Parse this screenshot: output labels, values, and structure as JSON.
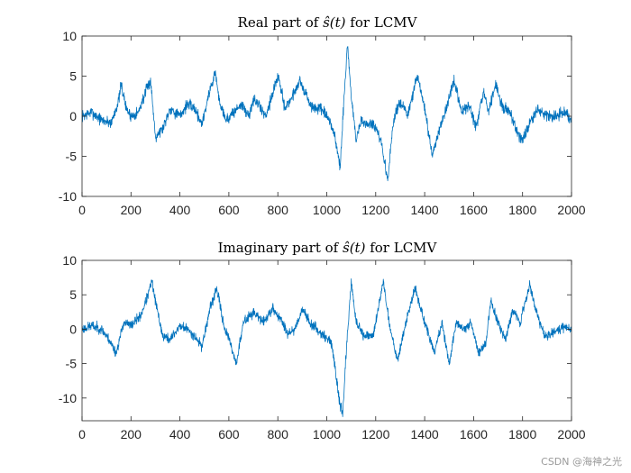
{
  "watermark": "CSDN @海神之光",
  "colors": {
    "series": "#0072BD",
    "axis": "#262626",
    "background": "#ffffff"
  },
  "chart_data": [
    {
      "type": "line",
      "title_prefix": "Real part of ",
      "title_math": "ŝ(t)",
      "title_suffix": " for LCMV",
      "xlim": [
        0,
        2000
      ],
      "ylim": [
        -10,
        10
      ],
      "xticks": [
        0,
        200,
        400,
        600,
        800,
        1000,
        1200,
        1400,
        1600,
        1800,
        2000
      ],
      "yticks": [
        -10,
        -5,
        0,
        5,
        10
      ],
      "xtick_labels": [
        "0",
        "200",
        "400",
        "600",
        "800",
        "1000",
        "1200",
        "1400",
        "1600",
        "1800",
        "2000"
      ],
      "ytick_labels": [
        "-10",
        "-5",
        "0",
        "5",
        "10"
      ],
      "noise": 0.7,
      "seed": 7,
      "x": [
        0,
        40,
        80,
        120,
        150,
        160,
        180,
        200,
        230,
        260,
        280,
        300,
        330,
        360,
        400,
        430,
        460,
        490,
        520,
        545,
        560,
        590,
        620,
        650,
        680,
        700,
        720,
        750,
        780,
        800,
        830,
        860,
        890,
        910,
        940,
        970,
        1000,
        1030,
        1055,
        1070,
        1085,
        1100,
        1120,
        1140,
        1160,
        1190,
        1220,
        1250,
        1270,
        1300,
        1330,
        1370,
        1400,
        1430,
        1460,
        1490,
        1520,
        1550,
        1580,
        1610,
        1640,
        1660,
        1690,
        1720,
        1750,
        1780,
        1800,
        1830,
        1860,
        1900,
        1940,
        1970,
        2000
      ],
      "y": [
        0,
        0.5,
        -0.5,
        -0.8,
        2,
        4,
        1,
        0,
        0.5,
        3,
        4.5,
        -2.5,
        -1.5,
        1,
        0,
        1.5,
        1,
        -1,
        3,
        5.5,
        2,
        -0.5,
        0.5,
        1.5,
        0,
        2,
        1.5,
        0,
        3,
        5,
        1,
        2.5,
        4.5,
        3,
        1,
        1,
        0,
        -2,
        -6.5,
        2,
        9,
        2.5,
        -3,
        -0.5,
        -1,
        -1,
        -3,
        -8,
        -1,
        2,
        0,
        5,
        1,
        -5,
        -1.5,
        1,
        4.5,
        0.5,
        1.5,
        -1.5,
        3,
        0.5,
        4,
        1,
        0.5,
        -2,
        -3,
        -1,
        1,
        0,
        0,
        0.5,
        -0.5
      ]
    },
    {
      "type": "line",
      "title_prefix": "Imaginary part of ",
      "title_math": "ŝ(t)",
      "title_suffix": " for LCMV",
      "xlim": [
        0,
        2000
      ],
      "ylim": [
        -13.3,
        10
      ],
      "xticks": [
        0,
        200,
        400,
        600,
        800,
        1000,
        1200,
        1400,
        1600,
        1800,
        2000
      ],
      "yticks": [
        -10,
        -5,
        0,
        5,
        10
      ],
      "xtick_labels": [
        "0",
        "200",
        "400",
        "600",
        "800",
        "1000",
        "1200",
        "1400",
        "1600",
        "1800",
        "2000"
      ],
      "ytick_labels": [
        "-10",
        "-5",
        "0",
        "5",
        "10"
      ],
      "noise": 0.7,
      "seed": 23,
      "x": [
        0,
        40,
        80,
        110,
        140,
        170,
        200,
        240,
        270,
        285,
        300,
        330,
        360,
        400,
        430,
        460,
        490,
        520,
        550,
        580,
        610,
        630,
        660,
        700,
        740,
        780,
        810,
        840,
        870,
        900,
        930,
        960,
        990,
        1020,
        1050,
        1065,
        1080,
        1100,
        1120,
        1150,
        1190,
        1230,
        1260,
        1290,
        1320,
        1360,
        1400,
        1440,
        1470,
        1500,
        1530,
        1560,
        1590,
        1620,
        1650,
        1670,
        1700,
        1730,
        1760,
        1790,
        1830,
        1860,
        1890,
        1930,
        1970,
        2000
      ],
      "y": [
        0,
        0.5,
        0,
        -1.5,
        -3.5,
        1,
        0.5,
        2,
        5,
        7,
        4,
        -1,
        -1.5,
        0.5,
        0,
        -1,
        -2.5,
        2.5,
        6,
        0.5,
        -2.5,
        -5,
        1,
        2.5,
        1,
        3,
        1.5,
        -0.5,
        0,
        3,
        1,
        0,
        -1,
        -2,
        -10,
        -12.5,
        -3,
        7,
        1,
        -1,
        -1,
        7,
        0,
        -4.5,
        0.5,
        6,
        1,
        -3.5,
        1,
        -5,
        1,
        0,
        1,
        -3.5,
        -2,
        4,
        1,
        -1.5,
        3,
        1,
        6.5,
        2,
        -1,
        -0.5,
        0.5,
        0
      ]
    }
  ]
}
